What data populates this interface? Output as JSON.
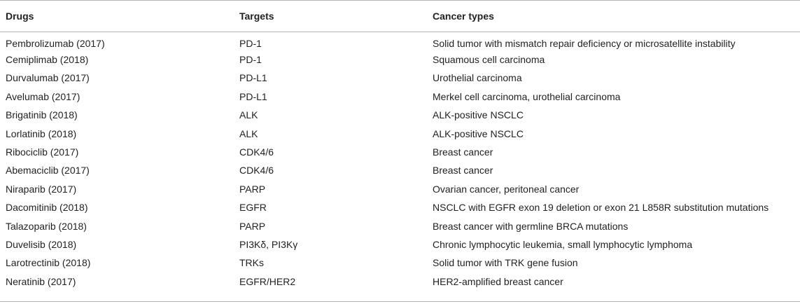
{
  "columns": [
    "Drugs",
    "Targets",
    "Cancer types"
  ],
  "rows": [
    [
      "Pembrolizumab (2017)",
      "PD-1",
      "Solid tumor with mismatch repair deficiency or microsatellite instability"
    ],
    [
      "Cemiplimab (2018)",
      "PD-1",
      "Squamous cell carcinoma"
    ],
    [
      "Durvalumab (2017)",
      "PD-L1",
      "Urothelial carcinoma"
    ],
    [
      "Avelumab (2017)",
      "PD-L1",
      "Merkel cell carcinoma, urothelial carcinoma"
    ],
    [
      "Brigatinib (2018)",
      "ALK",
      "ALK-positive NSCLC"
    ],
    [
      "Lorlatinib (2018)",
      "ALK",
      "ALK-positive NSCLC"
    ],
    [
      "Ribociclib (2017)",
      "CDK4/6",
      "Breast cancer"
    ],
    [
      "Abemaciclib (2017)",
      "CDK4/6",
      "Breast cancer"
    ],
    [
      "Niraparib (2017)",
      "PARP",
      "Ovarian cancer, peritoneal cancer"
    ],
    [
      "Dacomitinib (2018)",
      "EGFR",
      "NSCLC with EGFR exon 19 deletion or exon 21 L858R substitution mutations"
    ],
    [
      "Talazoparib (2018)",
      "PARP",
      "Breast cancer with germline BRCA mutations"
    ],
    [
      "Duvelisib (2018)",
      "PI3Kδ, PI3Kγ",
      "Chronic lymphocytic leukemia, small lymphocytic lymphoma"
    ],
    [
      "Larotrectinib (2018)",
      "TRKs",
      "Solid tumor with TRK gene fusion"
    ],
    [
      "Neratinib (2017)",
      "EGFR/HER2",
      "HER2-amplified breast cancer"
    ]
  ]
}
